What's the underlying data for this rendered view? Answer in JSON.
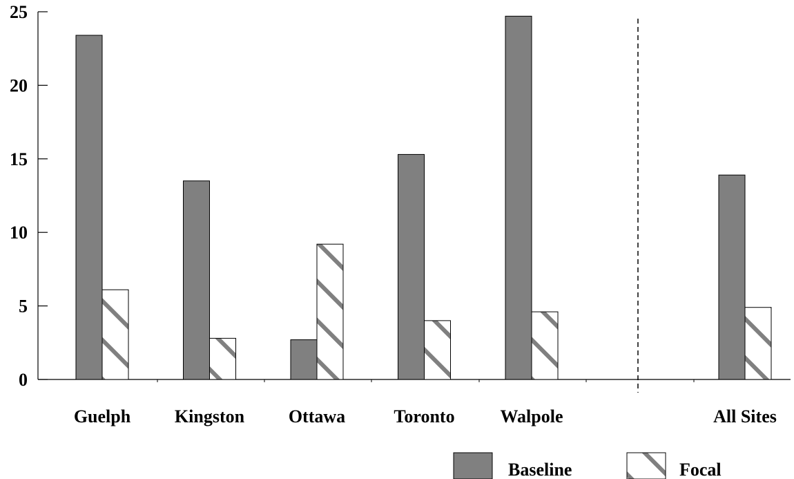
{
  "chart_data": {
    "type": "bar",
    "title": "",
    "xlabel": "",
    "ylabel": "",
    "ylim": [
      0,
      25
    ],
    "yticks": [
      0,
      5,
      10,
      15,
      20,
      25
    ],
    "categories": [
      "Guelph",
      "Kingston",
      "Ottawa",
      "Toronto",
      "Walpole",
      "All Sites"
    ],
    "series": [
      {
        "name": "Baseline",
        "values": [
          23.4,
          13.5,
          2.7,
          15.3,
          24.7,
          13.9
        ]
      },
      {
        "name": "Focal",
        "values": [
          6.1,
          2.8,
          9.2,
          4.0,
          4.6,
          4.9
        ]
      }
    ],
    "separator": "dashed line before All Sites",
    "legend_position": "bottom-right",
    "grid": false,
    "colors": {
      "baseline": "#808080",
      "focal_fill": "#ffffff",
      "focal_hatch": "#808080",
      "outline": "#000000"
    }
  }
}
